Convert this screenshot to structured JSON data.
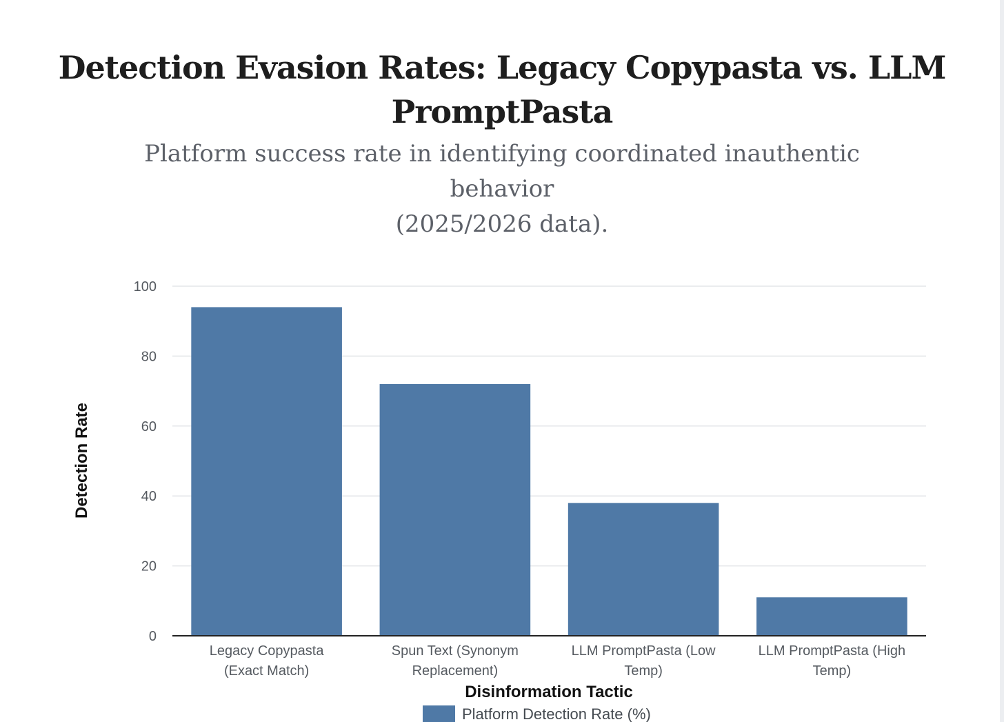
{
  "header": {
    "title_line1": "Detection Evasion Rates: Legacy Copypasta vs. LLM",
    "title_line2": "PromptPasta",
    "subtitle_line1": "Platform success rate in identifying coordinated inauthentic behavior",
    "subtitle_line2": "(2025/2026 data)."
  },
  "colors": {
    "bar": "#4f79a6",
    "grid": "#e3e5e8",
    "axis": "#222222"
  },
  "chart_data": {
    "type": "bar",
    "categories": [
      [
        "Legacy Copypasta",
        "(Exact Match)"
      ],
      [
        "Spun Text (Synonym",
        "Replacement)"
      ],
      [
        "LLM PromptPasta (Low",
        "Temp)"
      ],
      [
        "LLM PromptPasta (High",
        "Temp)"
      ]
    ],
    "series": [
      {
        "name": "Platform Detection Rate (%)",
        "values": [
          94,
          72,
          38,
          11
        ]
      }
    ],
    "xlabel": "Disinformation Tactic",
    "ylabel": "Detection Rate",
    "ylim": [
      0,
      100
    ],
    "yticks": [
      0,
      20,
      40,
      60,
      80,
      100
    ],
    "grid": true,
    "legend": "bottom-center"
  }
}
